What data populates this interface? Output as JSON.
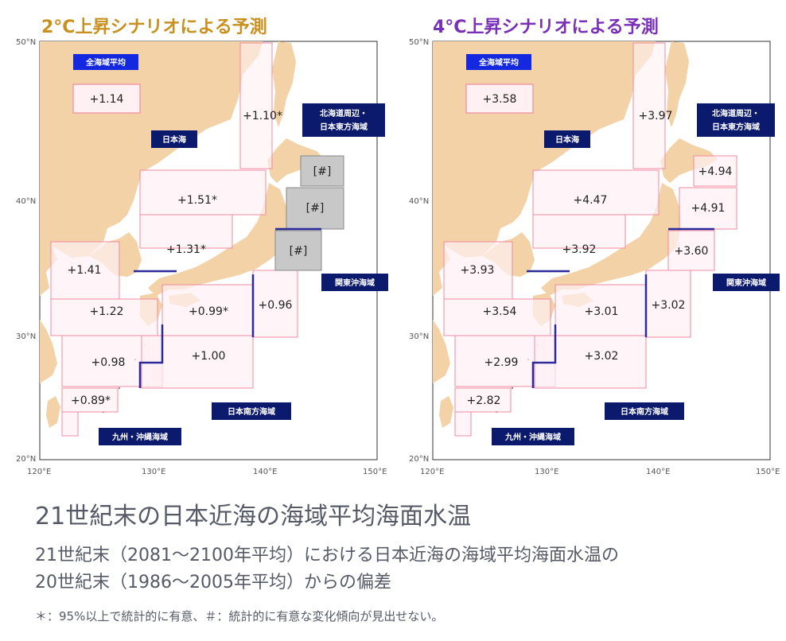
{
  "panels": [
    {
      "id": "2c",
      "title": "2°C上昇シナリオによる予測",
      "title_color": "#c8901e",
      "values": {
        "all_seas": "+1.14",
        "sea_of_japan_north": "+1.10*",
        "sea_of_japan_central": "+1.51*",
        "sea_of_japan_south": "+1.31*",
        "hokkaido_east_1": "[#]",
        "hokkaido_east_2": "[#]",
        "kanto_east": "[#]",
        "west_east_china_1": "+1.41",
        "west_east_china_2": "+1.22",
        "south_japan_1": "+0.99*",
        "kanto_offshore": "+0.96",
        "kyushu_1": "+0.98",
        "south_japan_2": "+1.00",
        "okinawa": "+0.89*"
      }
    },
    {
      "id": "4c",
      "title": "4°C上昇シナリオによる予測",
      "title_color": "#7a2fb8",
      "values": {
        "all_seas": "+3.58",
        "sea_of_japan_north": "+3.97",
        "sea_of_japan_central": "+4.47",
        "sea_of_japan_south": "+3.92",
        "hokkaido_east_1": "+4.94",
        "hokkaido_east_2": "+4.91",
        "kanto_east": "+3.60",
        "west_east_china_1": "+3.93",
        "west_east_china_2": "+3.54",
        "south_japan_1": "+3.01",
        "kanto_offshore": "+3.02",
        "kyushu_1": "+2.99",
        "south_japan_2": "+3.02",
        "okinawa": "+2.82"
      }
    }
  ],
  "tags": {
    "all_seas": "全海域平均",
    "sea_of_japan": "日本海",
    "hokkaido_line1": "北海道周辺・",
    "hokkaido_line2": "日本東方海域",
    "kanto": "関東沖海域",
    "south": "日本南方海域",
    "kyushu": "九州・沖縄海域"
  },
  "axes": {
    "lat": [
      "50°N",
      "40°N",
      "30°N",
      "20°N"
    ],
    "lon": [
      "120°E",
      "130°E",
      "140°E",
      "150°E"
    ]
  },
  "caption": {
    "title": "21世紀末の日本近海の海域平均海面水温",
    "line1": "21世紀末（2081～2100年平均）における日本近海の海域平均海面水温の",
    "line2": "20世紀末（1986～2005年平均）からの偏差",
    "note": "＊：95%以上で統計的に有意、＃：統計的に有意な変化傾向が見出せない。"
  },
  "colors": {
    "land": "#f2d2a6",
    "cell_fill": "#fff0f3",
    "cell_stroke": "#f08aa0",
    "no_trend_fill": "#c8c8c8",
    "tag_fill": "#0c1a6e",
    "tag_top_fill": "#1428e0",
    "boundary": "#2a2a9a"
  }
}
